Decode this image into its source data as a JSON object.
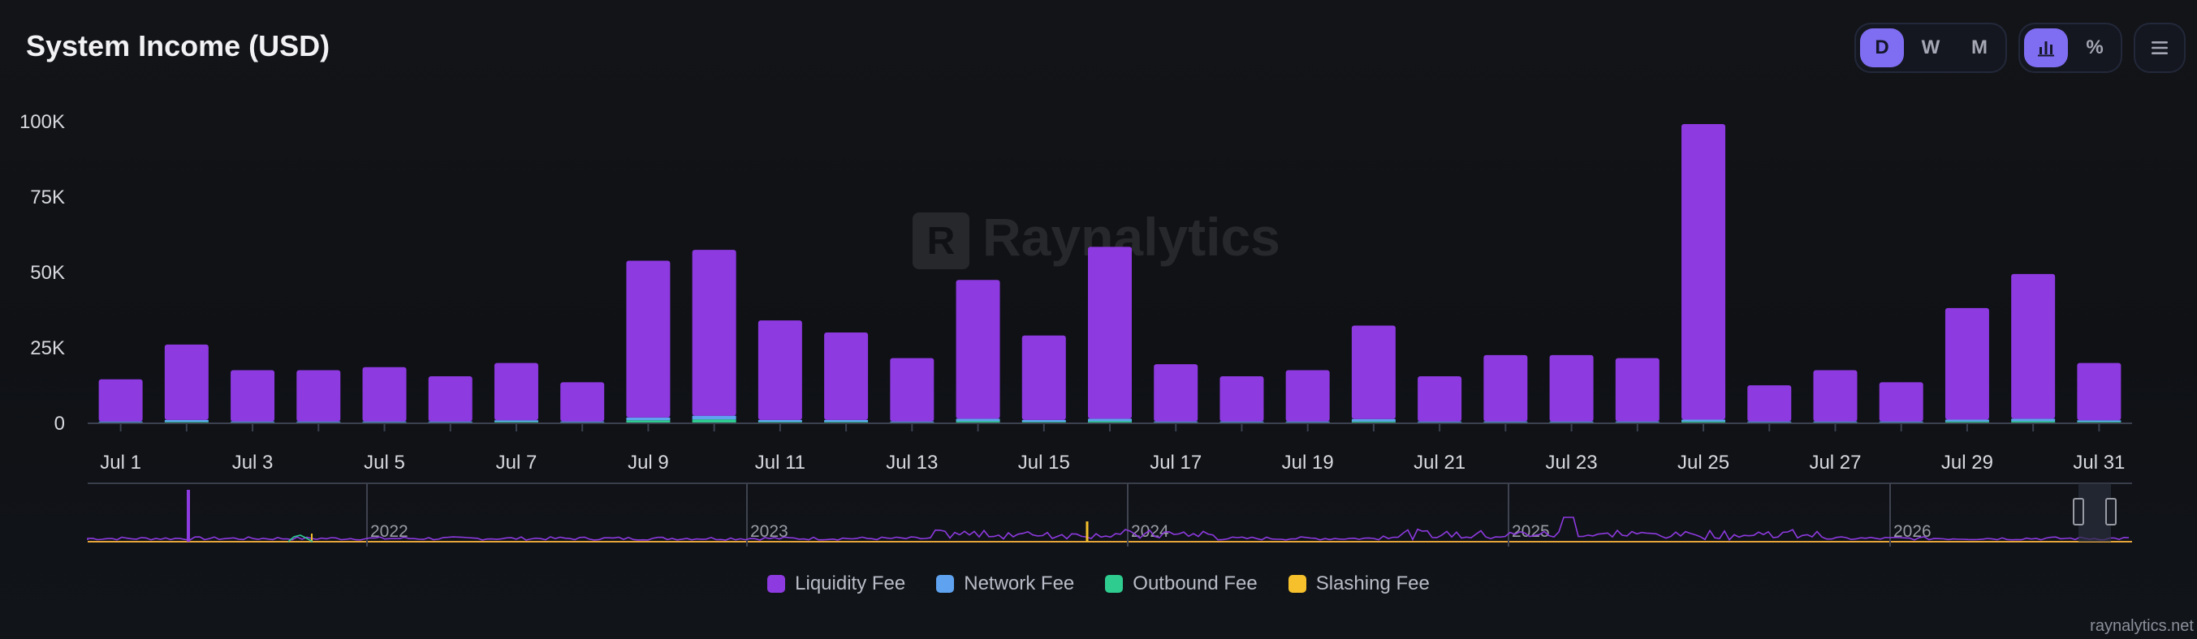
{
  "page": {
    "title": "System Income (USD)",
    "footer": "raynalytics.net"
  },
  "watermark": {
    "text": "Raynalytics",
    "logo_letter": "R"
  },
  "toolbar": {
    "period_buttons": [
      {
        "label": "D",
        "active": true
      },
      {
        "label": "W",
        "active": false
      },
      {
        "label": "M",
        "active": false
      }
    ],
    "view_buttons": [
      {
        "icon": "bar-chart-icon",
        "active": true
      },
      {
        "icon": "percent-icon",
        "label": "%",
        "active": false
      }
    ],
    "menu_icon": "hamburger-menu-icon"
  },
  "chart_data": {
    "type": "bar",
    "stacked": true,
    "categories": [
      "Jul 1",
      "Jul 2",
      "Jul 3",
      "Jul 4",
      "Jul 5",
      "Jul 6",
      "Jul 7",
      "Jul 8",
      "Jul 9",
      "Jul 10",
      "Jul 11",
      "Jul 12",
      "Jul 13",
      "Jul 14",
      "Jul 15",
      "Jul 16",
      "Jul 17",
      "Jul 18",
      "Jul 19",
      "Jul 20",
      "Jul 21",
      "Jul 22",
      "Jul 23",
      "Jul 24",
      "Jul 25",
      "Jul 26",
      "Jul 27",
      "Jul 28",
      "Jul 29",
      "Jul 30",
      "Jul 31"
    ],
    "x_tick_labels": [
      "Jul 1",
      "Jul 3",
      "Jul 5",
      "Jul 7",
      "Jul 9",
      "Jul 11",
      "Jul 13",
      "Jul 15",
      "Jul 17",
      "Jul 19",
      "Jul 21",
      "Jul 23",
      "Jul 25",
      "Jul 27",
      "Jul 29",
      "Jul 31"
    ],
    "y_ticks": [
      0,
      25000,
      50000,
      75000,
      100000
    ],
    "y_tick_labels": [
      "0",
      "25K",
      "50K",
      "75K",
      "100K"
    ],
    "ylim": [
      0,
      103000
    ],
    "series": [
      {
        "name": "Liquidity Fee",
        "color": "#8d3ae0",
        "values": [
          14000,
          25000,
          17000,
          17000,
          18000,
          15000,
          19000,
          13000,
          52000,
          55000,
          33000,
          29000,
          21000,
          46000,
          28000,
          57000,
          19000,
          15000,
          17000,
          31000,
          15000,
          22000,
          22000,
          21000,
          98000,
          12000,
          17000,
          13000,
          37000,
          48000,
          19000
        ]
      },
      {
        "name": "Network Fee",
        "color": "#5fa3f0",
        "values": [
          300,
          600,
          300,
          300,
          300,
          300,
          500,
          300,
          900,
          1200,
          600,
          600,
          300,
          800,
          600,
          800,
          300,
          300,
          300,
          800,
          300,
          300,
          300,
          300,
          600,
          300,
          300,
          300,
          600,
          800,
          500
        ]
      },
      {
        "name": "Outbound Fee",
        "color": "#2ecc8f",
        "values": [
          300,
          500,
          300,
          300,
          300,
          300,
          500,
          300,
          1000,
          1300,
          500,
          500,
          300,
          700,
          500,
          700,
          300,
          300,
          300,
          600,
          300,
          300,
          300,
          300,
          600,
          300,
          300,
          300,
          600,
          700,
          500
        ]
      },
      {
        "name": "Slashing Fee",
        "color": "#f5c02c",
        "values": [
          0,
          0,
          0,
          0,
          0,
          0,
          0,
          0,
          0,
          0,
          0,
          0,
          0,
          0,
          0,
          0,
          0,
          0,
          0,
          0,
          0,
          0,
          0,
          0,
          0,
          0,
          0,
          0,
          0,
          0,
          0
        ]
      }
    ],
    "grid": false,
    "legend": "bottom-center",
    "navigator": {
      "year_labels": [
        "2022",
        "2023",
        "2024",
        "2025",
        "2026"
      ]
    }
  }
}
